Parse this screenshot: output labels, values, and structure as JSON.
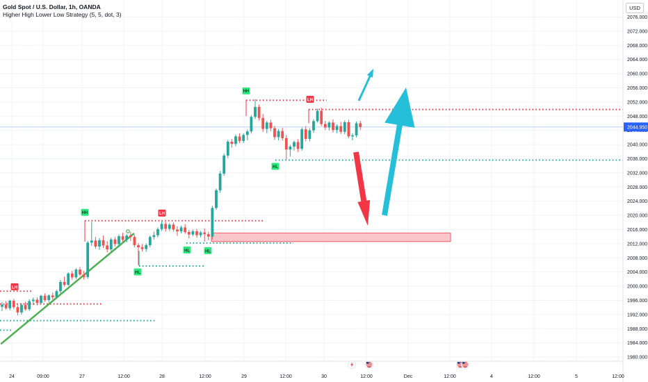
{
  "header": {
    "symbol": "Gold Spot / U.S. Dollar, 1h, OANDA",
    "indicator": "Higher High Lower Low Strategy (5, 5, dot, 3)"
  },
  "currency_button": "USD",
  "colors": {
    "up": "#26a69a",
    "down": "#ef5350",
    "high_line": "#f23645",
    "low_line": "#22ab94",
    "trendline": "#4caf50",
    "arrow_up": "#26bfd9",
    "arrow_down": "#f23645",
    "zone_fill": "#fbc6c9",
    "zone_stroke": "#f23645",
    "price_badge": "#2962ff"
  },
  "chart_data": {
    "type": "candlestick",
    "title": "Gold Spot / U.S. Dollar, 1h, OANDA",
    "indicator": "Higher High Lower Low Strategy (5, 5, dot, 3)",
    "ylim": [
      1978,
      2080
    ],
    "y_ticks": [
      1980,
      1984,
      1988,
      1992,
      1996,
      2000,
      2004,
      2008,
      2012,
      2016,
      2020,
      2024,
      2028,
      2032,
      2036,
      2040,
      2044,
      2048,
      2052,
      2056,
      2060,
      2064,
      2068,
      2072,
      2076
    ],
    "x_ticks": [
      "24",
      "09:00",
      "27",
      "12:00",
      "28",
      "12:00",
      "29",
      "12:00",
      "30",
      "12:00",
      "Dec",
      "12:00",
      "4",
      "12:00",
      "5",
      "12:00"
    ],
    "current_price": "2044.950",
    "candles": [
      [
        1994.2,
        1995.5,
        1993.0,
        1994.8
      ],
      [
        1994.8,
        1995.8,
        1993.4,
        1993.8
      ],
      [
        1993.8,
        1996.2,
        1993.2,
        1995.9
      ],
      [
        1995.9,
        1996.4,
        1993.6,
        1994.1
      ],
      [
        1994.1,
        1994.9,
        1991.8,
        1992.6
      ],
      [
        1992.6,
        1995.2,
        1992.0,
        1994.7
      ],
      [
        1994.7,
        1995.6,
        1993.1,
        1993.5
      ],
      [
        1993.5,
        1996.3,
        1993.0,
        1995.8
      ],
      [
        1995.8,
        1996.8,
        1994.7,
        1996.2
      ],
      [
        1996.2,
        1996.9,
        1994.6,
        1995.3
      ],
      [
        1995.3,
        1997.6,
        1995.0,
        1997.3
      ],
      [
        1997.3,
        1998.0,
        1995.6,
        1996.1
      ],
      [
        1996.1,
        1997.7,
        1995.4,
        1997.4
      ],
      [
        1997.4,
        1998.2,
        1996.2,
        1996.9
      ],
      [
        1996.9,
        1999.0,
        1996.4,
        1998.6
      ],
      [
        1998.6,
        2001.8,
        1998.0,
        2001.2
      ],
      [
        2001.2,
        2002.7,
        1999.9,
        2000.4
      ],
      [
        2000.4,
        2003.9,
        2000.1,
        2003.6
      ],
      [
        2003.6,
        2004.4,
        2001.8,
        2002.5
      ],
      [
        2002.5,
        2005.1,
        2002.0,
        2004.7
      ],
      [
        2004.7,
        2005.4,
        2002.9,
        2003.3
      ],
      [
        2003.3,
        2004.3,
        2001.9,
        2002.6
      ],
      [
        2002.6,
        2012.8,
        2002.1,
        2012.3
      ],
      [
        2012.3,
        2018.2,
        2011.4,
        2012.9
      ],
      [
        2012.9,
        2013.9,
        2010.6,
        2011.2
      ],
      [
        2011.2,
        2013.6,
        2010.3,
        2013.0
      ],
      [
        2013.0,
        2014.3,
        2010.8,
        2011.5
      ],
      [
        2011.5,
        2012.7,
        2009.6,
        2010.4
      ],
      [
        2010.4,
        2013.7,
        2009.9,
        2013.2
      ],
      [
        2013.2,
        2013.9,
        2011.2,
        2011.9
      ],
      [
        2011.9,
        2014.6,
        2011.3,
        2014.1
      ],
      [
        2014.1,
        2015.1,
        2012.5,
        2013.1
      ],
      [
        2013.1,
        2014.7,
        2012.4,
        2014.3
      ],
      [
        2014.3,
        2015.3,
        2012.8,
        2013.9
      ],
      [
        2013.9,
        2014.6,
        2011.0,
        2011.6
      ],
      [
        2011.6,
        2012.2,
        2006.0,
        2011.0
      ],
      [
        2011.0,
        2011.9,
        2009.8,
        2010.5
      ],
      [
        2010.5,
        2012.1,
        2009.7,
        2011.6
      ],
      [
        2011.6,
        2014.3,
        2011.0,
        2013.9
      ],
      [
        2013.9,
        2015.4,
        2013.2,
        2014.4
      ],
      [
        2014.4,
        2016.6,
        2013.8,
        2016.1
      ],
      [
        2016.1,
        2018.3,
        2015.6,
        2017.6
      ],
      [
        2017.6,
        2018.2,
        2015.4,
        2016.2
      ],
      [
        2016.2,
        2017.8,
        2015.6,
        2017.4
      ],
      [
        2017.4,
        2018.0,
        2015.4,
        2016.0
      ],
      [
        2016.0,
        2016.9,
        2014.2,
        2015.5
      ],
      [
        2015.5,
        2017.1,
        2014.9,
        2016.6
      ],
      [
        2016.6,
        2017.5,
        2014.8,
        2015.3
      ],
      [
        2015.3,
        2015.9,
        2013.5,
        2014.6
      ],
      [
        2014.6,
        2016.0,
        2014.1,
        2015.5
      ],
      [
        2015.5,
        2016.2,
        2013.7,
        2014.4
      ],
      [
        2014.4,
        2015.6,
        2013.8,
        2015.2
      ],
      [
        2015.2,
        2016.3,
        2012.6,
        2014.7
      ],
      [
        2014.7,
        2015.4,
        2013.0,
        2014.0
      ],
      [
        2014.0,
        2022.7,
        2013.2,
        2022.1
      ],
      [
        2022.1,
        2027.6,
        2021.6,
        2027.1
      ],
      [
        2027.1,
        2032.5,
        2026.4,
        2031.8
      ],
      [
        2031.8,
        2037.4,
        2031.2,
        2036.9
      ],
      [
        2036.9,
        2041.3,
        2036.2,
        2040.8
      ],
      [
        2040.8,
        2041.6,
        2039.1,
        2040.2
      ],
      [
        2040.2,
        2042.8,
        2039.5,
        2042.3
      ],
      [
        2042.3,
        2043.2,
        2040.4,
        2041.0
      ],
      [
        2041.0,
        2043.2,
        2040.4,
        2042.7
      ],
      [
        2042.7,
        2044.2,
        2041.2,
        2043.7
      ],
      [
        2043.7,
        2048.3,
        2043.1,
        2047.8
      ],
      [
        2047.8,
        2052.8,
        2047.2,
        2050.6
      ],
      [
        2050.6,
        2051.3,
        2046.8,
        2047.5
      ],
      [
        2047.5,
        2048.6,
        2043.6,
        2044.4
      ],
      [
        2044.4,
        2046.7,
        2043.2,
        2046.2
      ],
      [
        2046.2,
        2047.0,
        2043.8,
        2044.6
      ],
      [
        2044.6,
        2045.3,
        2041.3,
        2042.1
      ],
      [
        2042.1,
        2044.4,
        2041.2,
        2043.8
      ],
      [
        2043.8,
        2044.7,
        2041.1,
        2041.8
      ],
      [
        2041.8,
        2042.7,
        2035.8,
        2038.6
      ],
      [
        2038.6,
        2039.9,
        2036.6,
        2039.4
      ],
      [
        2039.4,
        2041.1,
        2038.3,
        2040.7
      ],
      [
        2040.7,
        2041.5,
        2037.9,
        2038.8
      ],
      [
        2038.8,
        2044.8,
        2038.3,
        2044.3
      ],
      [
        2044.3,
        2045.2,
        2040.9,
        2041.6
      ],
      [
        2041.6,
        2044.6,
        2040.9,
        2044.0
      ],
      [
        2044.0,
        2047.1,
        2043.3,
        2046.6
      ],
      [
        2046.6,
        2050.1,
        2046.2,
        2049.5
      ],
      [
        2049.5,
        2050.4,
        2045.2,
        2045.8
      ],
      [
        2045.8,
        2046.7,
        2044.1,
        2044.8
      ],
      [
        2044.8,
        2046.6,
        2044.0,
        2046.2
      ],
      [
        2046.2,
        2047.1,
        2043.4,
        2044.1
      ],
      [
        2044.1,
        2045.7,
        2043.2,
        2045.2
      ],
      [
        2045.2,
        2046.4,
        2043.0,
        2043.6
      ],
      [
        2043.6,
        2046.8,
        2042.9,
        2046.3
      ],
      [
        2046.3,
        2047.0,
        2041.8,
        2042.3
      ],
      [
        2042.3,
        2043.1,
        2041.2,
        2042.6
      ],
      [
        2042.6,
        2046.5,
        2042.0,
        2046.0
      ],
      [
        2046.0,
        2046.7,
        2044.1,
        2044.95
      ]
    ],
    "swing_labels": [
      {
        "label": "LH",
        "price": 1997.5
      },
      {
        "label": "HH",
        "price": 2018.5
      },
      {
        "label": "LH",
        "price": 2018.3
      },
      {
        "label": "HL",
        "price": 2006.0
      },
      {
        "label": "HL",
        "price": 2012.2
      },
      {
        "label": "HL",
        "price": 2012.0
      },
      {
        "label": "HH",
        "price": 2052.8
      },
      {
        "label": "HL",
        "price": 2035.8
      },
      {
        "label": "LH",
        "price": 2050.4
      }
    ],
    "levels": [
      {
        "kind": "high",
        "price": 1998.6
      },
      {
        "kind": "high",
        "price": 1995.0
      },
      {
        "kind": "low",
        "price": 1990.3
      },
      {
        "kind": "low",
        "price": 1987.6
      },
      {
        "kind": "high",
        "price": 2018.5
      },
      {
        "kind": "low",
        "price": 2012.2
      },
      {
        "kind": "low",
        "price": 2005.7
      },
      {
        "kind": "high",
        "price": 2052.5
      },
      {
        "kind": "high",
        "price": 2049.9
      },
      {
        "kind": "low",
        "price": 2035.6
      }
    ],
    "zone": {
      "top": 2015.0,
      "bottom": 2012.6
    }
  }
}
